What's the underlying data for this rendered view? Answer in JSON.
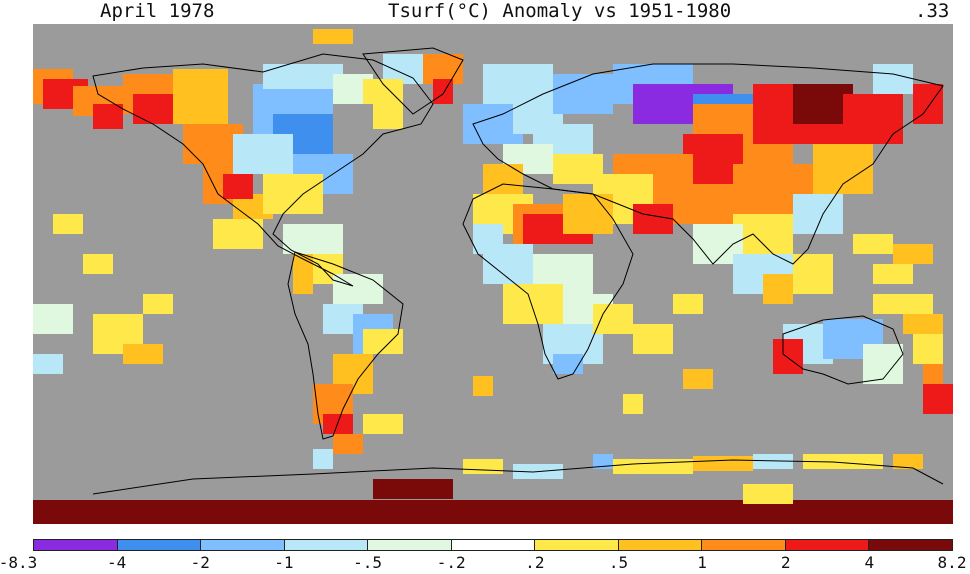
{
  "header": {
    "left": "April 1978",
    "center": "Tsurf(°C) Anomaly vs 1951-1980",
    "right": ".33"
  },
  "map": {
    "background_color": "#9b9b9b",
    "coastline_color": "#000000"
  },
  "legend": {
    "ticks": [
      "-8.3",
      "-4",
      "-2",
      "-1",
      "-.5",
      "-.2",
      ".2",
      ".5",
      "1",
      "2",
      "4",
      "8.2"
    ],
    "colors": [
      "#8a2be2",
      "#3f8fef",
      "#7fbfff",
      "#b8e8f8",
      "#e0f8e0",
      "#ffffff",
      "#ffe84a",
      "#ffc020",
      "#ff8c1a",
      "#ee1a1a",
      "#7a0a0a"
    ]
  }
}
